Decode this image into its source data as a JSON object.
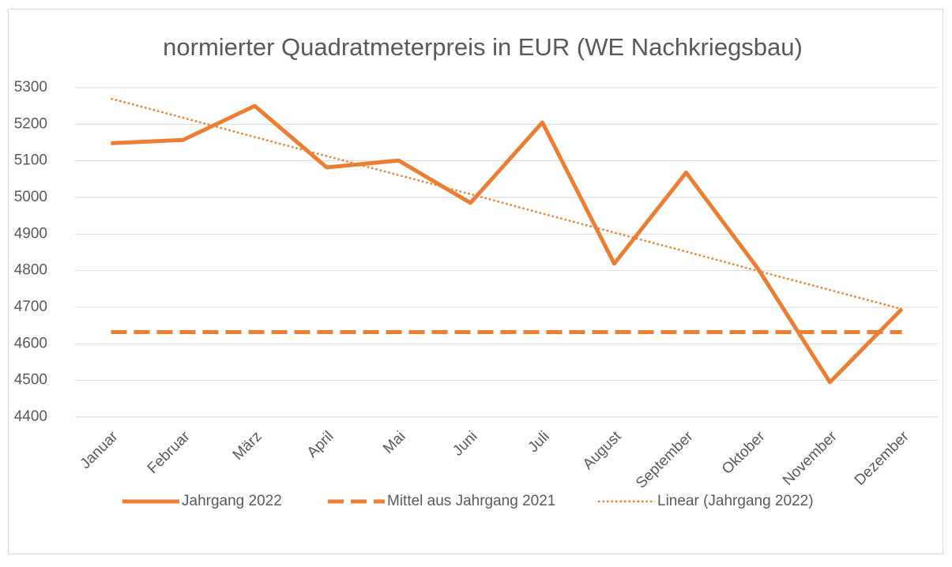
{
  "chart_data": {
    "type": "line",
    "title": "normierter Quadratmeterpreis in EUR (WE Nachkriegsbau)",
    "categories": [
      "Januar",
      "Februar",
      "März",
      "April",
      "Mai",
      "Juni",
      "Juli",
      "August",
      "September",
      "Oktober",
      "November",
      "Dezember"
    ],
    "series": [
      {
        "name": "Jahrgang 2022",
        "color": "#ed7d31",
        "dash": "solid",
        "values": [
          5148,
          5157,
          5250,
          5082,
          5101,
          4985,
          5205,
          4819,
          5068,
          4805,
          4495,
          4695
        ]
      },
      {
        "name": "Mittel aus Jahrgang 2021",
        "color": "#ed7d31",
        "dash": "dashed",
        "values": [
          4632,
          4632,
          4632,
          4632,
          4632,
          4632,
          4632,
          4632,
          4632,
          4632,
          4632,
          4632
        ]
      },
      {
        "name": "Linear (Jahrgang 2022)",
        "color": "#ed7d31",
        "dash": "dotted",
        "values": [
          5270,
          5218,
          5165,
          5113,
          5061,
          5009,
          4956,
          4904,
          4852,
          4799,
          4747,
          4695
        ]
      }
    ],
    "ylim": [
      4400,
      5300
    ],
    "yticks": [
      4400,
      4500,
      4600,
      4700,
      4800,
      4900,
      5000,
      5100,
      5200,
      5300
    ],
    "grid": true,
    "legend": "bottom"
  }
}
